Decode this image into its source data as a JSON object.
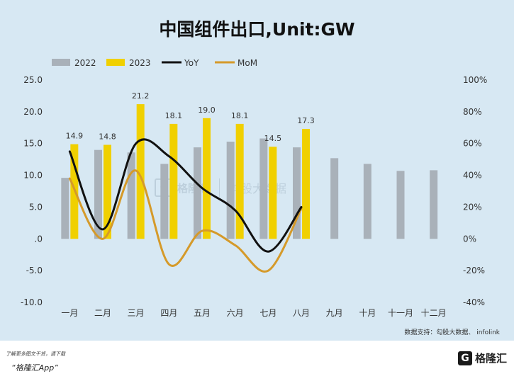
{
  "title": "中国组件出口,Unit:GW",
  "source": "数据支持：勾股大数据、 infolink",
  "watermark": {
    "icon": "G",
    "brand": "格隆汇",
    "site": "勾股大数据"
  },
  "footer": {
    "line1": "了解更多图文干货，请下载",
    "line2": "“格隆汇App”",
    "brand_icon": "G",
    "brand_text": "格隆汇"
  },
  "colors": {
    "s2022": "#a9b1b9",
    "s2023": "#f0d000",
    "yoy": "#111111",
    "mom": "#d59a2a",
    "background": "#d7e8f3"
  },
  "chart_data": {
    "type": "bar",
    "title": "中国组件出口,Unit:GW",
    "categories": [
      "一月",
      "二月",
      "三月",
      "四月",
      "五月",
      "六月",
      "七月",
      "八月",
      "九月",
      "十月",
      "十一月",
      "十二月"
    ],
    "series": [
      {
        "name": "2022",
        "type": "bar",
        "axis": "left",
        "values": [
          9.6,
          14.0,
          13.6,
          11.8,
          14.4,
          15.3,
          15.8,
          14.4,
          12.7,
          11.8,
          10.7,
          10.8
        ]
      },
      {
        "name": "2023",
        "type": "bar",
        "axis": "left",
        "values": [
          14.9,
          14.8,
          21.2,
          18.1,
          19.0,
          18.1,
          14.5,
          17.3,
          null,
          null,
          null,
          null
        ]
      },
      {
        "name": "YoY",
        "type": "line",
        "axis": "right",
        "values": [
          55,
          6,
          60,
          52,
          32,
          18,
          -8,
          20,
          null,
          null,
          null,
          null
        ]
      },
      {
        "name": "MoM",
        "type": "line",
        "axis": "right",
        "values": [
          38,
          0,
          43,
          -16,
          5,
          -4,
          -20,
          19,
          null,
          null,
          null,
          null
        ]
      }
    ],
    "data_labels_2023": [
      "14.9",
      "14.8",
      "21.2",
      "18.1",
      "19.0",
      "18.1",
      "14.5",
      "17.3"
    ],
    "y_left": {
      "ylim": [
        -10,
        25
      ],
      "ticks": [
        "25.0",
        "20.0",
        "15.0",
        "10.0",
        "5.0",
        ".0",
        "-5.0",
        "-10.0"
      ]
    },
    "y_right": {
      "ylim": [
        -40,
        100
      ],
      "ticks": [
        "100%",
        "80%",
        "60%",
        "40%",
        "20%",
        "0%",
        "-20%",
        "-40%"
      ]
    },
    "grid": false,
    "legend": {
      "placement": "top-left",
      "entries": [
        "2022",
        "2023",
        "YoY",
        "MoM"
      ]
    }
  }
}
